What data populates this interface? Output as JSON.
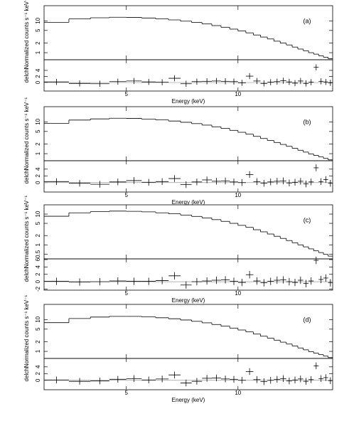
{
  "chart_data": [
    {
      "type": "spectrum",
      "label": "(a)",
      "xlabel": "Energy (keV)",
      "ylabel": "Normalized counts s⁻¹ keV⁻¹",
      "residual_label": "delchi",
      "xlim": [
        3,
        18
      ],
      "xticks": [
        5,
        10
      ],
      "log_x": true,
      "log_y": true,
      "ylim": [
        0.6,
        30
      ],
      "yticks": [
        1,
        2,
        5,
        10
      ],
      "rlim": [
        -2.8,
        7.5
      ],
      "rticks": [
        0,
        2,
        4
      ],
      "bins": [
        3,
        3.5,
        4,
        4.5,
        5,
        5.5,
        6,
        6.5,
        7,
        7.5,
        8,
        8.5,
        9,
        9.5,
        10,
        10.5,
        11,
        11.5,
        12,
        12.5,
        13,
        13.5,
        14,
        14.5,
        15,
        15.5,
        16,
        16.5,
        17,
        17.5,
        18
      ],
      "model": [
        9.0,
        11.5,
        12.5,
        13.0,
        12.8,
        12.3,
        11.5,
        10.7,
        9.8,
        8.9,
        8.0,
        7.1,
        6.3,
        5.5,
        4.8,
        4.2,
        3.6,
        3.1,
        2.7,
        2.3,
        2.0,
        1.75,
        1.5,
        1.3,
        1.15,
        1.0,
        0.9,
        0.8,
        0.72,
        0.65
      ],
      "residuals": [
        0.2,
        -0.3,
        -0.4,
        0.3,
        0.5,
        0.2,
        0.1,
        1.4,
        -0.4,
        0.3,
        0.4,
        0.5,
        0.4,
        0.3,
        -0.1,
        2.1,
        0.5,
        -0.3,
        0.1,
        0.3,
        0.6,
        0.2,
        -0.2,
        0.5,
        -0.3,
        0.1,
        5.0,
        0.4,
        0.2,
        -0.1
      ],
      "residual_errors": [
        1,
        1,
        1,
        1,
        1,
        1,
        1,
        1,
        1,
        1,
        1,
        1,
        1,
        1,
        1,
        1,
        1,
        1,
        1,
        1,
        1,
        1,
        1,
        1,
        1,
        1,
        1,
        1,
        1,
        1
      ]
    },
    {
      "type": "spectrum",
      "label": "(b)",
      "xlabel": "Energy (keV)",
      "ylabel": "Normalized counts s⁻¹ keV⁻¹",
      "residual_label": "delchi",
      "xlim": [
        3,
        18
      ],
      "xticks": [
        5,
        10
      ],
      "log_x": true,
      "log_y": true,
      "ylim": [
        0.6,
        30
      ],
      "yticks": [
        1,
        2,
        5,
        10
      ],
      "rlim": [
        -2.8,
        6.5
      ],
      "rticks": [
        0,
        2,
        4
      ],
      "bins": [
        3,
        3.5,
        4,
        4.5,
        5,
        5.5,
        6,
        6.5,
        7,
        7.5,
        8,
        8.5,
        9,
        9.5,
        10,
        10.5,
        11,
        11.5,
        12,
        12.5,
        13,
        13.5,
        14,
        14.5,
        15,
        15.5,
        16,
        16.5,
        17,
        17.5,
        18
      ],
      "model": [
        9.0,
        11.4,
        12.4,
        13.0,
        12.8,
        12.2,
        11.5,
        10.6,
        9.7,
        8.8,
        7.9,
        7.0,
        6.2,
        5.4,
        4.7,
        4.1,
        3.5,
        3.0,
        2.6,
        2.25,
        1.95,
        1.7,
        1.48,
        1.28,
        1.12,
        0.98,
        0.88,
        0.79,
        0.71,
        0.64
      ],
      "residuals": [
        0.3,
        -0.2,
        -0.5,
        0.2,
        0.6,
        0.1,
        0.3,
        1.2,
        -0.6,
        0.2,
        0.8,
        0.4,
        0.5,
        0.2,
        0.0,
        2.4,
        0.3,
        -0.2,
        0.2,
        0.4,
        0.5,
        -0.1,
        0.1,
        0.4,
        -0.4,
        0.2,
        4.4,
        0.3,
        0.9,
        -0.2
      ],
      "residual_errors": [
        1,
        1,
        1,
        1,
        1,
        1,
        1,
        1,
        1,
        1,
        1,
        1,
        1,
        1,
        1,
        1,
        1,
        1,
        1,
        1,
        1,
        1,
        1,
        1,
        1,
        1,
        1,
        1,
        1,
        1
      ]
    },
    {
      "type": "spectrum",
      "label": "(c)",
      "xlabel": "Energy (keV)",
      "ylabel": "Normalized counts s⁻¹ keV⁻¹",
      "residual_label": "delchi",
      "xlim": [
        3,
        18
      ],
      "xticks": [
        5,
        10
      ],
      "log_x": true,
      "log_y": true,
      "ylim": [
        0.35,
        20
      ],
      "yticks": [
        0.5,
        1,
        2,
        5,
        10
      ],
      "rlim": [
        -2.3,
        6.2
      ],
      "rticks": [
        -2,
        0,
        2,
        4,
        6
      ],
      "bins": [
        3,
        3.5,
        4,
        4.5,
        5,
        5.5,
        6,
        6.5,
        7,
        7.5,
        8,
        8.5,
        9,
        9.5,
        10,
        10.5,
        11,
        11.5,
        12,
        12.5,
        13,
        13.5,
        14,
        14.5,
        15,
        15.5,
        16,
        16.5,
        17,
        17.5,
        18
      ],
      "model": [
        8.5,
        11.0,
        12.0,
        12.5,
        12.3,
        11.8,
        11.0,
        10.2,
        9.3,
        8.4,
        7.5,
        6.6,
        5.8,
        5.0,
        4.3,
        3.7,
        3.1,
        2.65,
        2.25,
        1.9,
        1.62,
        1.38,
        1.17,
        1.0,
        0.86,
        0.74,
        0.64,
        0.56,
        0.49,
        0.43
      ],
      "residuals": [
        0.1,
        -0.1,
        0.0,
        0.2,
        0.1,
        0.1,
        0.3,
        1.6,
        -0.9,
        0.0,
        0.2,
        0.4,
        0.5,
        0.1,
        -0.2,
        1.9,
        0.2,
        -0.3,
        0.1,
        0.4,
        0.5,
        0.0,
        -0.2,
        0.4,
        -0.5,
        0.2,
        5.8,
        0.6,
        1.0,
        -0.3
      ],
      "residual_errors": [
        1,
        1,
        1,
        1,
        1,
        1,
        1,
        1,
        1,
        1,
        1,
        1,
        1,
        1,
        1,
        1,
        1,
        1,
        1,
        1,
        1,
        1,
        1,
        1,
        1,
        1,
        1,
        1,
        1,
        1
      ]
    },
    {
      "type": "spectrum",
      "label": "(d)",
      "xlabel": "Energy (keV)",
      "ylabel": "Normalized counts s⁻¹ keV⁻¹",
      "residual_label": "delchi",
      "xlim": [
        3,
        18
      ],
      "xticks": [
        5,
        10
      ],
      "log_x": true,
      "log_y": true,
      "ylim": [
        0.6,
        30
      ],
      "yticks": [
        1,
        2,
        5,
        10
      ],
      "rlim": [
        -2.8,
        6.5
      ],
      "rticks": [
        0,
        2,
        4
      ],
      "bins": [
        3,
        3.5,
        4,
        4.5,
        5,
        5.5,
        6,
        6.5,
        7,
        7.5,
        8,
        8.5,
        9,
        9.5,
        10,
        10.5,
        11,
        11.5,
        12,
        12.5,
        13,
        13.5,
        14,
        14.5,
        15,
        15.5,
        16,
        16.5,
        17,
        17.5,
        18
      ],
      "model": [
        8.0,
        10.8,
        12.0,
        12.6,
        12.6,
        12.1,
        11.4,
        10.6,
        9.7,
        8.8,
        7.9,
        7.0,
        6.2,
        5.4,
        4.7,
        4.1,
        3.5,
        3.0,
        2.6,
        2.25,
        1.95,
        1.7,
        1.48,
        1.28,
        1.12,
        0.98,
        0.88,
        0.79,
        0.71,
        0.64
      ],
      "residuals": [
        0.1,
        -0.3,
        -0.2,
        0.3,
        0.5,
        0.1,
        0.4,
        1.6,
        -0.8,
        -0.3,
        0.6,
        0.7,
        0.4,
        0.3,
        0.0,
        2.6,
        0.2,
        -0.4,
        0.0,
        0.3,
        0.5,
        -0.2,
        0.1,
        0.4,
        -0.3,
        0.2,
        4.3,
        0.5,
        0.8,
        -0.1
      ],
      "residual_errors": [
        1,
        1,
        1,
        1,
        1,
        1,
        1,
        1,
        1,
        1,
        1,
        1,
        1,
        1,
        1,
        1,
        1,
        1,
        1,
        1,
        1,
        1,
        1,
        1,
        1,
        1,
        1,
        1,
        1,
        1
      ]
    }
  ]
}
